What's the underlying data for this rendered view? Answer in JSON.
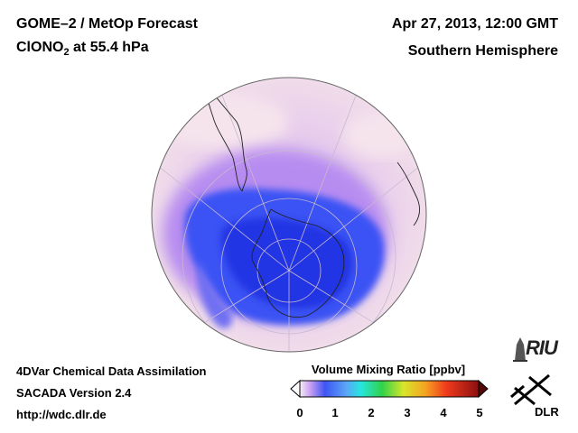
{
  "header": {
    "title_line1": "GOME–2 / MetOp Forecast",
    "title_line2_main": "ClONO",
    "title_line2_sub": "2",
    "title_line2_rest": " at 55.4 hPa",
    "date": "Apr 27, 2013, 12:00 GMT",
    "region": "Southern Hemisphere"
  },
  "footer": {
    "line1": "4DVar Chemical Data Assimilation",
    "line2": "SACADA Version 2.4",
    "line3": "http://wdc.dlr.de"
  },
  "colorbar": {
    "title": "Volume Mixing Ratio [ppbv]",
    "ticks": [
      "0",
      "1",
      "2",
      "3",
      "4",
      "5"
    ],
    "min": 0,
    "max": 5
  },
  "logos": {
    "riu": "RIU",
    "dlr": "DLR"
  },
  "colors": {
    "background": "#ffffff",
    "low": "#e9cfee",
    "mid": "#c9a0ee",
    "blue": "#3b52f4",
    "deep_blue": "#2030e0"
  }
}
